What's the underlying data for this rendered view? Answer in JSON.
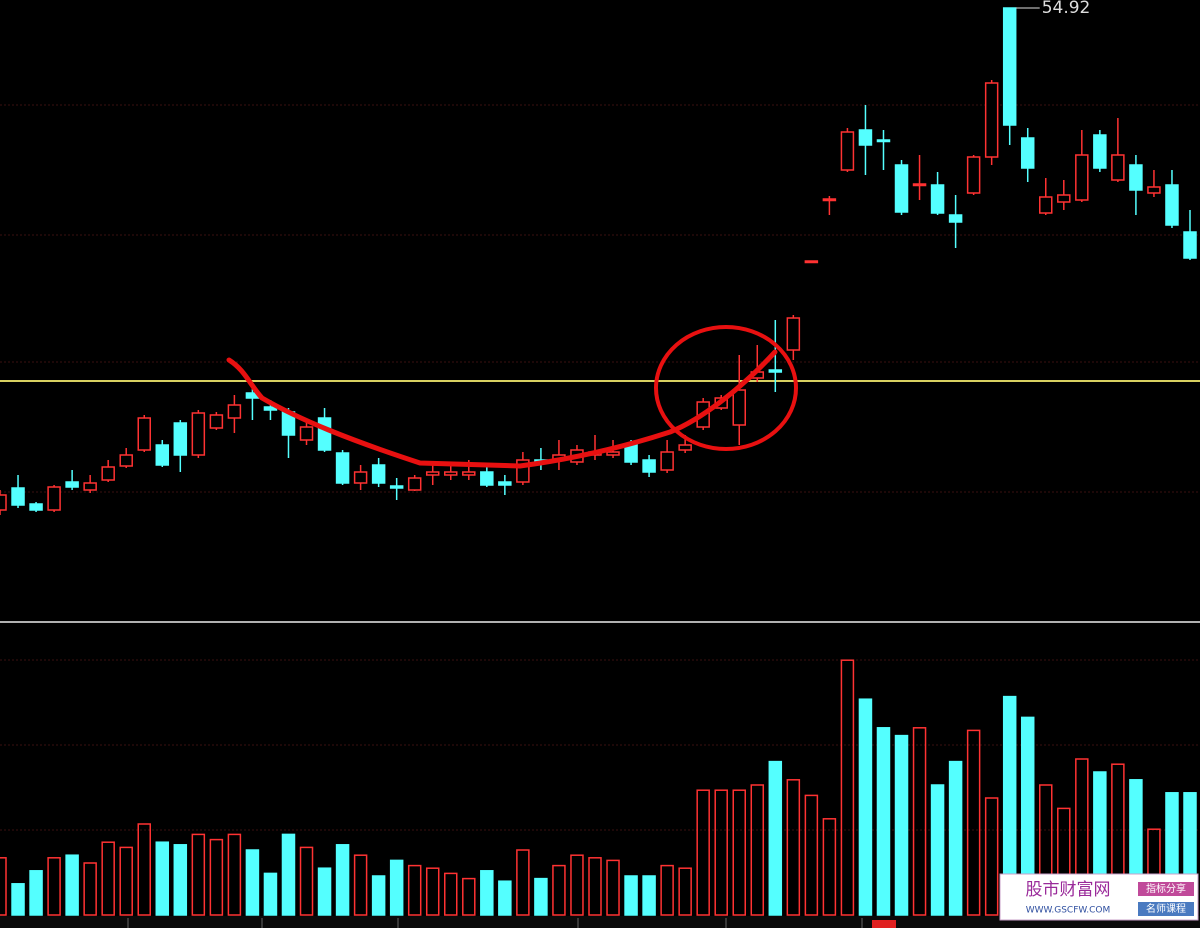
{
  "chart_data": {
    "type": "candlestick",
    "up_color": "#ff3232",
    "down_color": "#54ffff",
    "ylim": [
      24.32,
      55.32
    ],
    "reference_line": 36.27,
    "reference_color": "#d8d060",
    "high_label": 54.92,
    "open": [
      29.82,
      30.92,
      30.12,
      29.82,
      31.22,
      30.82,
      31.32,
      32.02,
      32.82,
      33.07,
      34.17,
      32.57,
      33.92,
      34.42,
      35.67,
      34.97,
      34.72,
      33.32,
      34.42,
      32.67,
      31.17,
      32.07,
      31.02,
      30.82,
      31.57,
      31.57,
      31.57,
      31.72,
      31.22,
      31.22,
      32.32,
      32.32,
      32.22,
      32.57,
      32.57,
      33.07,
      32.32,
      31.82,
      32.82,
      33.97,
      34.92,
      34.07,
      36.42,
      36.82,
      37.82,
      42.22,
      45.32,
      46.82,
      48.82,
      48.32,
      47.07,
      46.07,
      46.07,
      44.57,
      45.67,
      47.47,
      54.92,
      48.42,
      44.67,
      45.22,
      45.32,
      48.57,
      46.32,
      47.07,
      45.67,
      46.07,
      43.72
    ],
    "close": [
      30.57,
      30.07,
      29.82,
      30.97,
      30.97,
      31.17,
      31.97,
      32.57,
      34.42,
      32.07,
      32.57,
      34.67,
      34.57,
      35.07,
      35.42,
      34.82,
      33.57,
      33.97,
      32.82,
      31.17,
      31.72,
      31.17,
      30.92,
      31.42,
      31.72,
      31.72,
      31.72,
      31.07,
      31.07,
      32.32,
      32.17,
      32.57,
      32.82,
      32.72,
      32.72,
      32.22,
      31.72,
      32.72,
      33.07,
      35.22,
      35.42,
      35.82,
      36.72,
      36.72,
      39.42,
      42.27,
      45.37,
      48.72,
      48.07,
      48.27,
      44.72,
      46.12,
      44.67,
      44.22,
      47.47,
      51.17,
      49.07,
      46.92,
      45.47,
      45.57,
      47.57,
      46.92,
      47.57,
      45.82,
      45.97,
      44.07,
      42.42
    ],
    "high": [
      30.82,
      31.57,
      30.22,
      31.07,
      31.82,
      31.57,
      32.32,
      32.92,
      34.57,
      33.32,
      34.32,
      34.82,
      34.72,
      35.57,
      36.07,
      35.32,
      34.92,
      34.32,
      34.92,
      32.82,
      32.07,
      32.42,
      31.42,
      31.57,
      32.17,
      32.07,
      32.32,
      32.07,
      31.57,
      32.72,
      32.92,
      33.32,
      33.07,
      33.57,
      33.32,
      33.32,
      32.57,
      33.32,
      33.57,
      35.42,
      35.57,
      37.57,
      38.07,
      39.32,
      39.57,
      42.27,
      45.52,
      48.92,
      50.07,
      48.82,
      47.32,
      47.57,
      46.72,
      45.57,
      47.57,
      51.32,
      54.92,
      48.92,
      46.42,
      46.32,
      48.82,
      48.82,
      49.42,
      47.57,
      46.82,
      46.82,
      44.82
    ],
    "low": [
      29.57,
      29.92,
      29.72,
      29.72,
      30.82,
      30.67,
      31.22,
      31.92,
      32.72,
      31.97,
      31.72,
      32.42,
      33.82,
      33.67,
      34.32,
      34.32,
      32.42,
      33.07,
      32.72,
      31.07,
      30.82,
      30.97,
      30.32,
      30.77,
      31.07,
      31.32,
      31.32,
      30.97,
      30.57,
      31.07,
      31.82,
      31.82,
      32.07,
      32.32,
      32.42,
      32.07,
      31.47,
      31.67,
      32.67,
      33.82,
      34.82,
      33.07,
      36.22,
      35.72,
      37.32,
      42.22,
      44.57,
      46.72,
      46.57,
      46.82,
      44.57,
      45.32,
      44.57,
      42.92,
      45.57,
      47.07,
      48.07,
      46.22,
      44.57,
      44.82,
      45.22,
      46.72,
      46.22,
      44.57,
      45.47,
      43.92,
      42.32
    ],
    "volume": {
      "ylim": [
        0,
        100
      ],
      "values": [
        22,
        12,
        17,
        22,
        23,
        20,
        28,
        26,
        35,
        28,
        27,
        31,
        29,
        31,
        25,
        16,
        31,
        26,
        18,
        27,
        23,
        15,
        21,
        19,
        18,
        16,
        14,
        17,
        13,
        25,
        14,
        19,
        23,
        22,
        21,
        15,
        15,
        19,
        18,
        48,
        48,
        48,
        50,
        59,
        52,
        46,
        37,
        98,
        83,
        72,
        69,
        72,
        50,
        59,
        71,
        45,
        84,
        76,
        50,
        41,
        60,
        55,
        58,
        52,
        33,
        47,
        47
      ]
    }
  },
  "watermark": {
    "title": "股市财富网",
    "url": "WWW.GSCFW.COM",
    "tag1": "指标分享",
    "tag2": "名师课程"
  }
}
